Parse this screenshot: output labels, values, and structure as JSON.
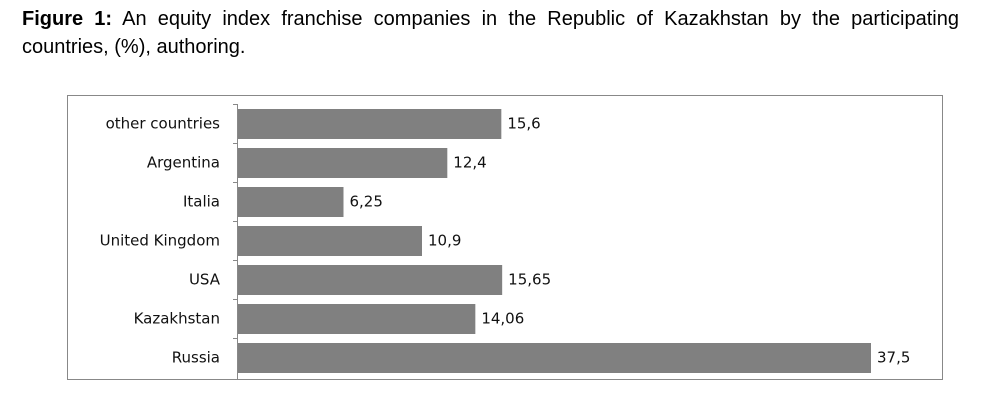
{
  "chart_data": {
    "type": "bar",
    "orientation": "horizontal",
    "title_label": "Figure 1:",
    "title": "An equity index franchise companies in the Republic of Kazakhstan by the participating countries, (%), authoring.",
    "categories": [
      "other countries",
      "Argentina",
      "Italia",
      "United Kingdom",
      "USA",
      "Kazakhstan",
      "Russia"
    ],
    "values": [
      15.6,
      12.4,
      6.25,
      10.9,
      15.65,
      14.06,
      37.5
    ],
    "value_labels": [
      "15,6",
      "12,4",
      "6,25",
      "10,9",
      "15,65",
      "14,06",
      "37,5"
    ],
    "color": "#808080"
  }
}
